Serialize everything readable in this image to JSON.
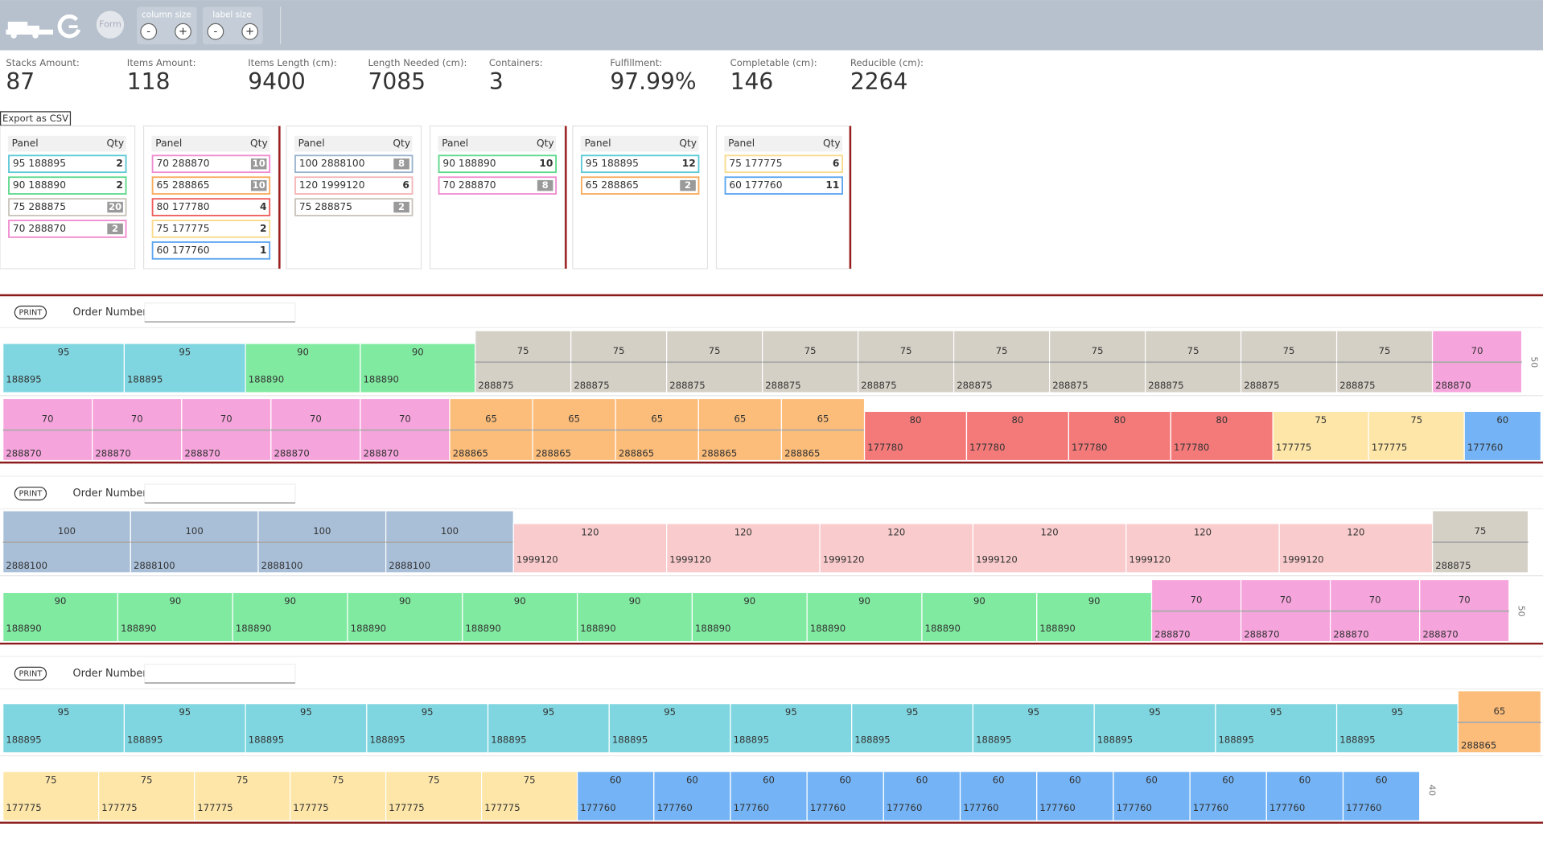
{
  "toolbar": {
    "form": "Form",
    "column_size": "column size",
    "label_size": "label size",
    "minus": "-",
    "plus": "+"
  },
  "stats": [
    {
      "label": "Stacks Amount:",
      "value": "87"
    },
    {
      "label": "Items Amount:",
      "value": "118"
    },
    {
      "label": "Items Length (cm):",
      "value": "9400"
    },
    {
      "label": "Length Needed (cm):",
      "value": "7085"
    },
    {
      "label": "Containers:",
      "value": "3"
    },
    {
      "label": "Fulfillment:",
      "value": "97.99%"
    },
    {
      "label": "Completable (cm):",
      "value": "146"
    },
    {
      "label": "Reducible (cm):",
      "value": "2264"
    }
  ],
  "export": "Export as CSV",
  "panel_header": [
    "Panel",
    "Qty"
  ],
  "cards": [
    [
      {
        "panel": "95 188895",
        "qty": "2",
        "badge": false,
        "color": "#5cc8d6"
      },
      {
        "panel": "90 188890",
        "qty": "2",
        "badge": false,
        "color": "#5cd88a"
      },
      {
        "panel": "75 288875",
        "qty": "20",
        "badge": true,
        "color": "#c8c4ba"
      },
      {
        "panel": "70 288870",
        "qty": "2",
        "badge": true,
        "color": "#f08ad0"
      }
    ],
    [
      {
        "panel": "70 288870",
        "qty": "10",
        "badge": true,
        "color": "#f08ad0"
      },
      {
        "panel": "65 288865",
        "qty": "10",
        "badge": true,
        "color": "#f8aa5c"
      },
      {
        "panel": "80 177780",
        "qty": "4",
        "badge": false,
        "color": "#ee5c5c"
      },
      {
        "panel": "75 177775",
        "qty": "2",
        "badge": false,
        "color": "#f8da8a"
      },
      {
        "panel": "60 177760",
        "qty": "1",
        "badge": false,
        "color": "#5aa4f0"
      }
    ],
    [
      {
        "panel": "100 2888100",
        "qty": "8",
        "badge": true,
        "color": "#98b2cc"
      },
      {
        "panel": "120 1999120",
        "qty": "6",
        "badge": false,
        "color": "#f4b4b6"
      },
      {
        "panel": "75 288875",
        "qty": "2",
        "badge": true,
        "color": "#c8c4ba"
      }
    ],
    [
      {
        "panel": "90 188890",
        "qty": "10",
        "badge": false,
        "color": "#5cd88a"
      },
      {
        "panel": "70 288870",
        "qty": "8",
        "badge": true,
        "color": "#f08ad0"
      }
    ],
    [
      {
        "panel": "95 188895",
        "qty": "12",
        "badge": false,
        "color": "#5cc8d6"
      },
      {
        "panel": "65 288865",
        "qty": "2",
        "badge": true,
        "color": "#f8aa5c"
      }
    ],
    [
      {
        "panel": "75 177775",
        "qty": "6",
        "badge": false,
        "color": "#f8da8a"
      },
      {
        "panel": "60 177760",
        "qty": "11",
        "badge": false,
        "color": "#5aa4f0"
      }
    ]
  ],
  "palette": {
    "188895": "#7fd6e0",
    "188890": "#80eaa0",
    "288875": "#d4d0c6",
    "288870": "#f6a4dc",
    "288865": "#fcbd7a",
    "177780": "#f47a7a",
    "177775": "#fde6a8",
    "177760": "#74b4f6",
    "2888100": "#a9bfd8",
    "1999120": "#f9cbcc"
  },
  "print": "PRINT",
  "order_label": "Order Number",
  "containers": [
    {
      "rows": [
        {
          "side": "50",
          "blocks": [
            [
              "95",
              "188895"
            ],
            [
              "95",
              "188895"
            ],
            [
              "90",
              "188890"
            ],
            [
              "90",
              "188890"
            ],
            [
              "75",
              "288875"
            ],
            [
              "75",
              "288875"
            ],
            [
              "75",
              "288875"
            ],
            [
              "75",
              "288875"
            ],
            [
              "75",
              "288875"
            ],
            [
              "75",
              "288875"
            ],
            [
              "75",
              "288875"
            ],
            [
              "75",
              "288875"
            ],
            [
              "75",
              "288875"
            ],
            [
              "75",
              "288875"
            ],
            [
              "70",
              "288870"
            ]
          ]
        },
        {
          "side": null,
          "blocks": [
            [
              "70",
              "288870"
            ],
            [
              "70",
              "288870"
            ],
            [
              "70",
              "288870"
            ],
            [
              "70",
              "288870"
            ],
            [
              "70",
              "288870"
            ],
            [
              "65",
              "288865"
            ],
            [
              "65",
              "288865"
            ],
            [
              "65",
              "288865"
            ],
            [
              "65",
              "288865"
            ],
            [
              "65",
              "288865"
            ],
            [
              "80",
              "177780"
            ],
            [
              "80",
              "177780"
            ],
            [
              "80",
              "177780"
            ],
            [
              "80",
              "177780"
            ],
            [
              "75",
              "177775"
            ],
            [
              "75",
              "177775"
            ],
            [
              "60",
              "177760"
            ]
          ]
        }
      ]
    },
    {
      "rows": [
        {
          "side": null,
          "blocks": [
            [
              "100",
              "2888100"
            ],
            [
              "100",
              "2888100"
            ],
            [
              "100",
              "2888100"
            ],
            [
              "100",
              "2888100"
            ],
            [
              "120",
              "1999120"
            ],
            [
              "120",
              "1999120"
            ],
            [
              "120",
              "1999120"
            ],
            [
              "120",
              "1999120"
            ],
            [
              "120",
              "1999120"
            ],
            [
              "120",
              "1999120"
            ],
            [
              "75",
              "288875"
            ]
          ]
        },
        {
          "side": "50",
          "blocks": [
            [
              "90",
              "188890"
            ],
            [
              "90",
              "188890"
            ],
            [
              "90",
              "188890"
            ],
            [
              "90",
              "188890"
            ],
            [
              "90",
              "188890"
            ],
            [
              "90",
              "188890"
            ],
            [
              "90",
              "188890"
            ],
            [
              "90",
              "188890"
            ],
            [
              "90",
              "188890"
            ],
            [
              "90",
              "188890"
            ],
            [
              "70",
              "288870"
            ],
            [
              "70",
              "288870"
            ],
            [
              "70",
              "288870"
            ],
            [
              "70",
              "288870"
            ]
          ]
        }
      ]
    },
    {
      "rows": [
        {
          "side": null,
          "blocks": [
            [
              "95",
              "188895"
            ],
            [
              "95",
              "188895"
            ],
            [
              "95",
              "188895"
            ],
            [
              "95",
              "188895"
            ],
            [
              "95",
              "188895"
            ],
            [
              "95",
              "188895"
            ],
            [
              "95",
              "188895"
            ],
            [
              "95",
              "188895"
            ],
            [
              "95",
              "188895"
            ],
            [
              "95",
              "188895"
            ],
            [
              "95",
              "188895"
            ],
            [
              "95",
              "188895"
            ],
            [
              "65",
              "288865"
            ]
          ]
        },
        {
          "side": "40",
          "blocks": [
            [
              "75",
              "177775"
            ],
            [
              "75",
              "177775"
            ],
            [
              "75",
              "177775"
            ],
            [
              "75",
              "177775"
            ],
            [
              "75",
              "177775"
            ],
            [
              "75",
              "177775"
            ],
            [
              "60",
              "177760"
            ],
            [
              "60",
              "177760"
            ],
            [
              "60",
              "177760"
            ],
            [
              "60",
              "177760"
            ],
            [
              "60",
              "177760"
            ],
            [
              "60",
              "177760"
            ],
            [
              "60",
              "177760"
            ],
            [
              "60",
              "177760"
            ],
            [
              "60",
              "177760"
            ],
            [
              "60",
              "177760"
            ],
            [
              "60",
              "177760"
            ]
          ]
        }
      ]
    }
  ]
}
